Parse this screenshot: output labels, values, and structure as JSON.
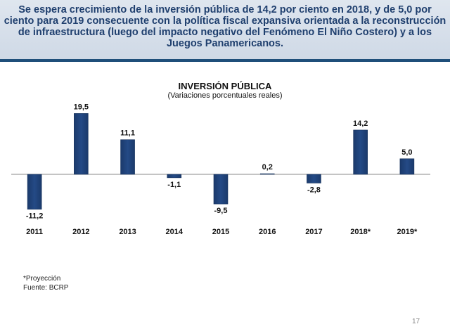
{
  "header": {
    "text": "Se espera crecimiento de la inversión pública de 14,2 por ciento en 2018, y de 5,0 por ciento para 2019 consecuente con la política fiscal expansiva orientada a la reconstrucción de infraestructura (luego del impacto negativo del Fenómeno El Niño Costero) y a los Juegos Panamericanos."
  },
  "chart_data": {
    "type": "bar",
    "title": "INVERSIÓN PÚBLICA",
    "subtitle": "(Variaciones porcentuales reales)",
    "categories": [
      "2011",
      "2012",
      "2013",
      "2014",
      "2015",
      "2016",
      "2017",
      "2018*",
      "2019*"
    ],
    "values": [
      -11.2,
      19.5,
      11.1,
      -1.1,
      -9.5,
      0.2,
      -2.8,
      14.2,
      5.0
    ],
    "value_labels": [
      "-11,2",
      "19,5",
      "11,1",
      "-1,1",
      "-9,5",
      "0,2",
      "-2,8",
      "14,2",
      "5,0"
    ],
    "ylim": [
      -12,
      20
    ],
    "xlabel": "",
    "ylabel": "",
    "bar_color": "#244a86",
    "grid": false
  },
  "notes": {
    "projection": "*Proyección",
    "source": "Fuente: BCRP"
  },
  "page_number": "17"
}
